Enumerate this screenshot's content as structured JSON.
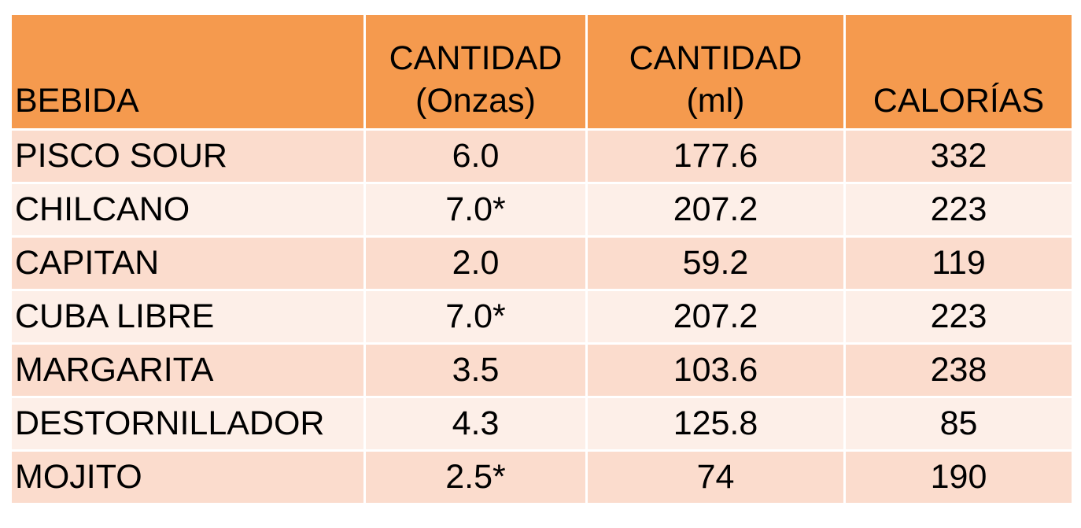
{
  "table": {
    "headers": {
      "bebida": "BEBIDA",
      "onzas_line1": "CANTIDAD",
      "onzas_line2": "(Onzas)",
      "ml_line1": "CANTIDAD",
      "ml_line2": "(ml)",
      "calorias": "CALORÍAS"
    },
    "rows": [
      {
        "bebida": "PISCO SOUR",
        "onzas": "6.0",
        "ml": "177.6",
        "calorias": "332"
      },
      {
        "bebida": "CHILCANO",
        "onzas": "7.0*",
        "ml": "207.2",
        "calorias": "223"
      },
      {
        "bebida": "CAPITAN",
        "onzas": "2.0",
        "ml": "59.2",
        "calorias": "119"
      },
      {
        "bebida": "CUBA LIBRE",
        "onzas": "7.0*",
        "ml": "207.2",
        "calorias": "223"
      },
      {
        "bebida": "MARGARITA",
        "onzas": "3.5",
        "ml": "103.6",
        "calorias": "238"
      },
      {
        "bebida": "DESTORNILLADOR",
        "onzas": "4.3",
        "ml": "125.8",
        "calorias": "85"
      },
      {
        "bebida": "MOJITO",
        "onzas": "2.5*",
        "ml": "74",
        "calorias": "190"
      }
    ]
  },
  "colors": {
    "header_bg": "#f59a4e",
    "row_dark": "#fbdccd",
    "row_light": "#fdefe8",
    "border": "#ffffff"
  }
}
